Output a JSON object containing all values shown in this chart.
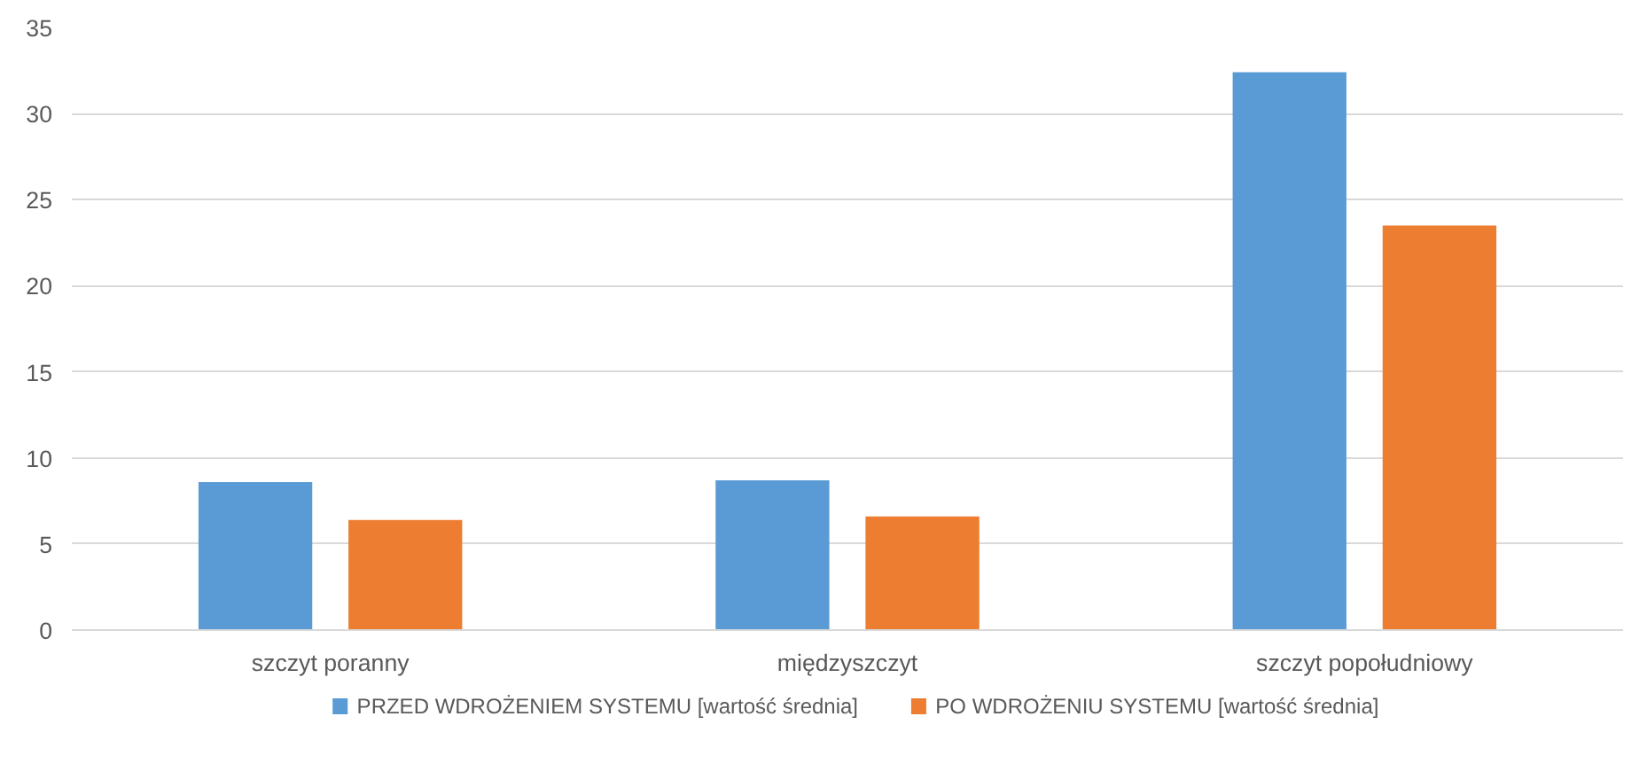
{
  "chart_data": {
    "type": "bar",
    "categories": [
      "szczyt poranny",
      "międzyszczyt",
      "szczyt popołudniowy"
    ],
    "series": [
      {
        "name": "PRZED WDROŻENIEM SYSTEMU [wartość średnia]",
        "color": "#5b9bd5",
        "values": [
          8.6,
          8.7,
          32.4
        ]
      },
      {
        "name": "PO WDROŻENIU SYSTEMU [wartość średnia]",
        "color": "#ed7d31",
        "values": [
          6.4,
          6.6,
          23.5
        ]
      }
    ],
    "ylim": [
      0,
      35
    ],
    "yticks": [
      0,
      5,
      10,
      15,
      20,
      25,
      30,
      35
    ],
    "grid": "y",
    "legend": "bottom"
  }
}
